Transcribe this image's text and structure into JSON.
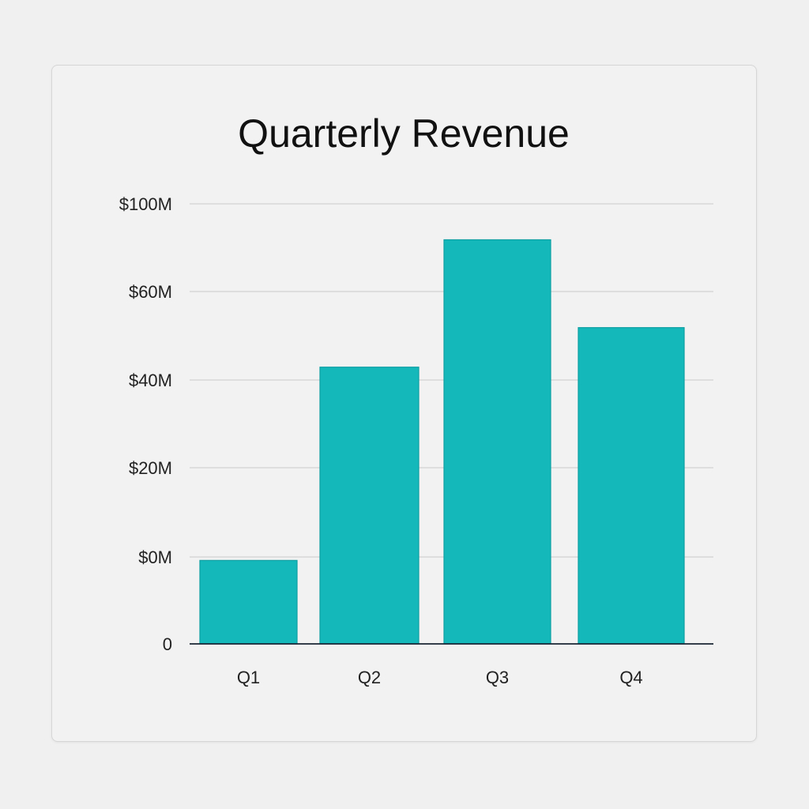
{
  "chart_data": {
    "type": "bar",
    "title": "Quarterly Revenue",
    "categories": [
      "Q1",
      "Q2",
      "Q3",
      "Q4"
    ],
    "values": [
      19,
      63,
      92,
      72
    ],
    "y_tick_labels": [
      "0",
      "$0M",
      "$20M",
      "$40M",
      "$60M",
      "$100M"
    ],
    "xlabel": "",
    "ylabel": "",
    "grid": true,
    "legend": "none",
    "colors": {
      "bar": "#14b8bb",
      "bar_edge": "#0e9fa2",
      "grid": "#d2d2d2",
      "axis": "#1a2433",
      "background": "#f2f2f2"
    }
  }
}
